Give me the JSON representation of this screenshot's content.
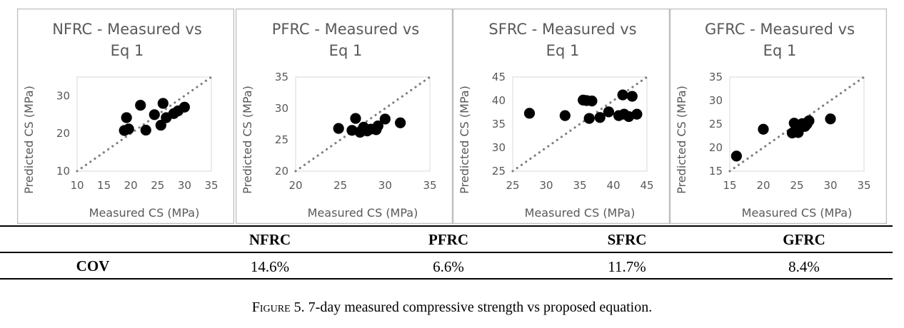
{
  "chart_data": [
    {
      "type": "scatter",
      "title": "NFRC - Measured vs Eq 1",
      "title_lines": [
        "NFRC - Measured vs",
        "Eq 1"
      ],
      "xlabel": "Measured CS (MPa)",
      "ylabel": "Predicted CS (MPa)",
      "xlim": [
        10,
        35
      ],
      "ylim": [
        10,
        35
      ],
      "xticks": [
        10,
        15,
        20,
        25,
        30,
        35
      ],
      "yticks": [
        10,
        20,
        30
      ],
      "reference_line": "y = x (dotted)",
      "grid": false,
      "points": [
        {
          "x": 18.8,
          "y": 20.8
        },
        {
          "x": 19.2,
          "y": 24.2
        },
        {
          "x": 19.6,
          "y": 21.2
        },
        {
          "x": 21.8,
          "y": 27.5
        },
        {
          "x": 22.8,
          "y": 20.9
        },
        {
          "x": 24.4,
          "y": 25.0
        },
        {
          "x": 25.6,
          "y": 22.2
        },
        {
          "x": 26.0,
          "y": 28.0
        },
        {
          "x": 26.6,
          "y": 24.2
        },
        {
          "x": 28.0,
          "y": 25.3
        },
        {
          "x": 28.8,
          "y": 26.0
        },
        {
          "x": 30.0,
          "y": 27.0
        }
      ]
    },
    {
      "type": "scatter",
      "title": "PFRC - Measured vs Eq 1",
      "title_lines": [
        "PFRC - Measured vs",
        "Eq 1"
      ],
      "xlabel": "Measured CS (MPa)",
      "ylabel": "Predicted CS (MPa)",
      "xlim": [
        20,
        35
      ],
      "ylim": [
        20,
        35
      ],
      "xticks": [
        20,
        25,
        30,
        35
      ],
      "yticks": [
        20,
        25,
        30,
        35
      ],
      "reference_line": "y = x (dotted)",
      "grid": false,
      "points": [
        {
          "x": 24.8,
          "y": 26.8
        },
        {
          "x": 26.3,
          "y": 26.5
        },
        {
          "x": 26.7,
          "y": 28.4
        },
        {
          "x": 27.2,
          "y": 26.2
        },
        {
          "x": 27.6,
          "y": 27.0
        },
        {
          "x": 28.0,
          "y": 26.4
        },
        {
          "x": 28.4,
          "y": 26.7
        },
        {
          "x": 29.0,
          "y": 26.6
        },
        {
          "x": 29.2,
          "y": 27.2
        },
        {
          "x": 30.0,
          "y": 28.3
        },
        {
          "x": 31.7,
          "y": 27.7
        }
      ]
    },
    {
      "type": "scatter",
      "title": "SFRC - Measured vs Eq 1",
      "title_lines": [
        "SFRC - Measured vs",
        "Eq 1"
      ],
      "xlabel": "Measured CS (MPa)",
      "ylabel": "Predicted CS (MPa)",
      "xlim": [
        25,
        45
      ],
      "ylim": [
        25,
        45
      ],
      "xticks": [
        25,
        30,
        35,
        40,
        45
      ],
      "yticks": [
        25,
        30,
        35,
        40,
        45
      ],
      "reference_line": "y = x (dotted)",
      "grid": false,
      "points": [
        {
          "x": 27.5,
          "y": 37.3
        },
        {
          "x": 32.8,
          "y": 36.8
        },
        {
          "x": 35.5,
          "y": 40.1
        },
        {
          "x": 36.0,
          "y": 40.0
        },
        {
          "x": 36.4,
          "y": 36.2
        },
        {
          "x": 36.8,
          "y": 39.9
        },
        {
          "x": 38.0,
          "y": 36.4
        },
        {
          "x": 39.3,
          "y": 37.6
        },
        {
          "x": 40.8,
          "y": 36.8
        },
        {
          "x": 41.4,
          "y": 41.2
        },
        {
          "x": 41.6,
          "y": 37.1
        },
        {
          "x": 42.3,
          "y": 36.6
        },
        {
          "x": 42.8,
          "y": 40.9
        },
        {
          "x": 43.5,
          "y": 37.1
        }
      ]
    },
    {
      "type": "scatter",
      "title": "GFRC - Measured vs Eq 1",
      "title_lines": [
        "GFRC - Measured vs",
        "Eq 1"
      ],
      "xlabel": "Measured CS (MPa)",
      "ylabel": "Predicted CS (MPa)",
      "xlim": [
        15,
        35
      ],
      "ylim": [
        15,
        35
      ],
      "xticks": [
        15,
        20,
        25,
        30,
        35
      ],
      "yticks": [
        15,
        20,
        25,
        30,
        35
      ],
      "reference_line": "y = x (dotted)",
      "grid": false,
      "points": [
        {
          "x": 16.0,
          "y": 18.2
        },
        {
          "x": 20.0,
          "y": 23.9
        },
        {
          "x": 24.3,
          "y": 23.1
        },
        {
          "x": 24.6,
          "y": 25.2
        },
        {
          "x": 24.9,
          "y": 24.3
        },
        {
          "x": 25.2,
          "y": 23.2
        },
        {
          "x": 25.5,
          "y": 24.8
        },
        {
          "x": 25.8,
          "y": 25.1
        },
        {
          "x": 26.2,
          "y": 24.5
        },
        {
          "x": 26.5,
          "y": 25.0
        },
        {
          "x": 26.8,
          "y": 25.7
        },
        {
          "x": 30.0,
          "y": 26.1
        }
      ]
    }
  ],
  "table": {
    "headers": [
      "NFRC",
      "PFRC",
      "SFRC",
      "GFRC"
    ],
    "row_label": "COV",
    "values": [
      "14.6%",
      "6.6%",
      "11.7%",
      "8.4%"
    ]
  },
  "caption": {
    "figure_word": "Figure",
    "text": " 5. 7-day measured compressive strength vs proposed equation."
  },
  "colors": {
    "marker": "#000000",
    "reference_line": "#7f7f7f",
    "text": "#595959",
    "frame": "#bfbfbf"
  }
}
